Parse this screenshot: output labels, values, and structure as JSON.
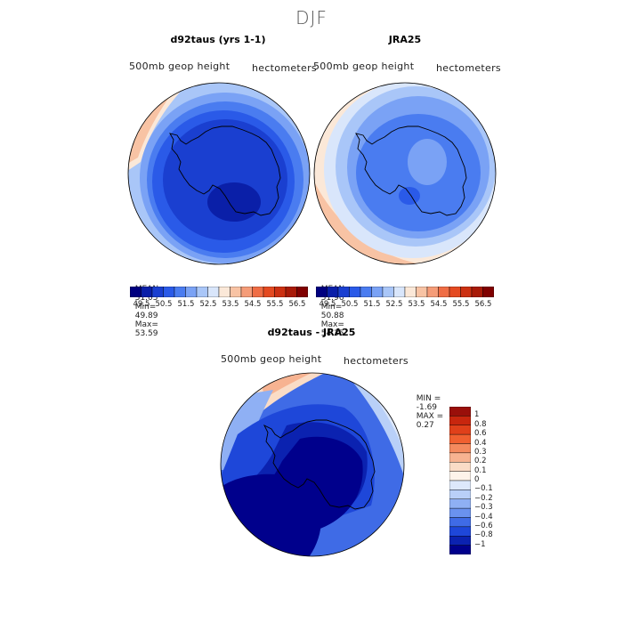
{
  "title": "DJF",
  "panels": [
    {
      "id": "model",
      "title": "d92taus (yrs 1-1)",
      "field_label": "500mb geop height",
      "units": "hectometers",
      "stats": {
        "mean_label": "MEAN=",
        "mean": "51.05",
        "min_label": "Min=",
        "min": "49.89",
        "max_label": "Max=",
        "max": "53.59"
      }
    },
    {
      "id": "obs",
      "title": "JRA25",
      "field_label": "500mb geop height",
      "units": "hectometers",
      "stats": {
        "mean_label": "MEAN=",
        "mean": "51.96",
        "min_label": "Min=",
        "min": "50.88",
        "max_label": "Max=",
        "max": "54.35"
      }
    },
    {
      "id": "diff",
      "title": "d92taus - JRA25",
      "field_label": "500mb geop height",
      "units": "hectometers",
      "stats": {
        "min_label": "MIN =",
        "min": "-1.69",
        "max_label": "MAX =",
        "max": "0.27"
      }
    }
  ],
  "colorbar_top": {
    "labels": [
      "49.5",
      "50.5",
      "51.5",
      "52.5",
      "53.5",
      "54.5",
      "55.5",
      "56.5"
    ],
    "colors": [
      "#00007f",
      "#0a1fa8",
      "#1a3fd0",
      "#2a5ae8",
      "#4a7cf0",
      "#7aa2f5",
      "#a9c6f8",
      "#d9e6fb",
      "#fbe8d8",
      "#f8c3a4",
      "#f59c78",
      "#ef6d45",
      "#e44a21",
      "#cc3012",
      "#a81a08",
      "#800000"
    ]
  },
  "colorbar_diff": {
    "labels": [
      "1",
      "0.8",
      "0.6",
      "0.4",
      "0.3",
      "0.2",
      "0.1",
      "0",
      "−0.1",
      "−0.2",
      "−0.3",
      "−0.4",
      "−0.6",
      "−0.8",
      "−1"
    ],
    "colors": [
      "#9a0f0a",
      "#c8260e",
      "#e0401a",
      "#f06030",
      "#f48a5e",
      "#f7b391",
      "#fadcc6",
      "#fdf3ea",
      "#dde8fb",
      "#b9d0f8",
      "#8fb0f4",
      "#6a92ef",
      "#3f6be6",
      "#1e47d9",
      "#0b22b0",
      "#00008c"
    ]
  }
}
